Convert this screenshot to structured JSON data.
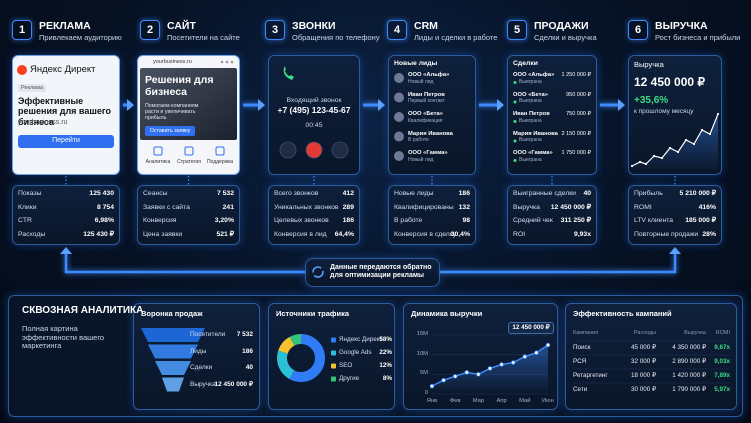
{
  "steps": [
    {
      "num": "1",
      "title": "РЕКЛАМА",
      "subtitle": "Привлекаем аудиторию",
      "card": {
        "brand": "Яндекс Директ",
        "tag": "Реклама",
        "headline": "Эффективные решения для вашего бизнеса",
        "url": "yourbusiness.ru",
        "button": "Перейти"
      },
      "stats": [
        [
          "Показы",
          "125 430"
        ],
        [
          "Клики",
          "8 754"
        ],
        [
          "CTR",
          "6,98%"
        ],
        [
          "Расходы",
          "125 430 ₽"
        ]
      ]
    },
    {
      "num": "2",
      "title": "САЙТ",
      "subtitle": "Посетители на сайте",
      "card": {
        "url": "yourbusiness.ru",
        "headline": "Решения для бизнеса",
        "text": "Помогаем компаниям расти и увеличивать прибыль",
        "button": "Оставить заявку",
        "features": [
          "Аналитика",
          "Стратегия",
          "Поддержка"
        ]
      },
      "stats": [
        [
          "Сеансы",
          "7 532"
        ],
        [
          "Заявки с сайта",
          "241"
        ],
        [
          "Конверсия",
          "3,20%"
        ],
        [
          "Цена заявки",
          "521 ₽"
        ]
      ]
    },
    {
      "num": "3",
      "title": "ЗВОНКИ",
      "subtitle": "Обращения по телефону",
      "card": {
        "caption": "Входящий звонок",
        "phone": "+7 (495) 123-45-67",
        "duration": "00:45"
      },
      "stats": [
        [
          "Всего звонков",
          "412"
        ],
        [
          "Уникальных звонков",
          "289"
        ],
        [
          "Целевых звонков",
          "186"
        ],
        [
          "Конверсия в лид",
          "64,4%"
        ]
      ]
    },
    {
      "num": "4",
      "title": "CRM",
      "subtitle": "Лиды и сделки в работе",
      "card": {
        "title": "Новые лиды",
        "items": [
          [
            "ООО «Альфа»",
            "Новый лид"
          ],
          [
            "Иван Петров",
            "Первый контакт"
          ],
          [
            "ООО «Бета»",
            "Квалификация"
          ],
          [
            "Мария Иванова",
            "В работе"
          ],
          [
            "ООО «Гамма»",
            "Новый лид"
          ]
        ]
      },
      "stats": [
        [
          "Новые лиды",
          "186"
        ],
        [
          "Квалифицированы",
          "132"
        ],
        [
          "В работе",
          "98"
        ],
        [
          "Конверсия в сделку",
          "30,4%"
        ]
      ]
    },
    {
      "num": "5",
      "title": "ПРОДАЖИ",
      "subtitle": "Сделки и выручка",
      "card": {
        "title": "Сделки",
        "items": [
          [
            "ООО «Альфа»",
            "1 250 000 ₽",
            "Выиграна"
          ],
          [
            "ООО «Бета»",
            "950 000 ₽",
            "Выиграна"
          ],
          [
            "Иван Петров",
            "750 000 ₽",
            "Выиграна"
          ],
          [
            "Мария Иванова",
            "2 150 000 ₽",
            "Выиграна"
          ],
          [
            "ООО «Гамма»",
            "1 750 000 ₽",
            "Выиграна"
          ]
        ]
      },
      "stats": [
        [
          "Выигранные сделки",
          "40"
        ],
        [
          "Выручка",
          "12 450 000 ₽"
        ],
        [
          "Средний чек",
          "311 250 ₽"
        ],
        [
          "ROI",
          "9,93х"
        ]
      ]
    },
    {
      "num": "6",
      "title": "ВЫРУЧКА",
      "subtitle": "Рост бизнеса и прибыли",
      "card": {
        "title": "Выручка",
        "amount": "12 450 000 ₽",
        "change": "+35,6%",
        "note": "к прошлому месяцу"
      },
      "stats": [
        [
          "Прибыль",
          "5 210 000 ₽"
        ],
        [
          "ROMI",
          "416%"
        ],
        [
          "LTV клиента",
          "185 000 ₽"
        ],
        [
          "Повторные продажи",
          "28%"
        ]
      ]
    }
  ],
  "feedback": "Данные передаются обратно для оптимизации рекламы",
  "analytics": {
    "title": "СКВОЗНАЯ АНАЛИТИКА",
    "subtitle": "Полная картина эффективности вашего маркетинга",
    "funnel": {
      "title": "Воронка продаж",
      "rows": [
        [
          "Посетители",
          "7 532"
        ],
        [
          "Лиды",
          "186"
        ],
        [
          "Сделки",
          "40"
        ],
        [
          "Выручка",
          "12 450 000 ₽"
        ]
      ]
    },
    "sources": {
      "type": "pie",
      "title": "Источники трафика",
      "categories": [
        "Яндекс Директ",
        "Google Ads",
        "SEO",
        "Другие"
      ],
      "values": [
        58,
        22,
        12,
        8
      ],
      "value_labels": [
        "58%",
        "22%",
        "12%",
        "8%"
      ],
      "colors": [
        "#2f7cf6",
        "#2bc0d8",
        "#f2c230",
        "#35c27a"
      ]
    },
    "revenue": {
      "type": "line",
      "title": "Динамика выручки",
      "x": [
        0,
        0.5,
        1,
        1.5,
        2,
        2.5,
        3,
        3.5,
        4,
        4.5,
        5
      ],
      "values": [
        2000000,
        3500000,
        4500000,
        5500000,
        5000000,
        6500000,
        7500000,
        8000000,
        9500000,
        10500000,
        12450000
      ],
      "xlim": [
        0,
        5
      ],
      "xticks": [
        {
          "value": 0,
          "label": "Янв"
        },
        {
          "value": 1,
          "label": "Фев"
        },
        {
          "value": 2,
          "label": "Мар"
        },
        {
          "value": 3,
          "label": "Апр"
        },
        {
          "value": 4,
          "label": "Май"
        },
        {
          "value": 5,
          "label": "Июн"
        }
      ],
      "ylim": [
        0,
        15000000
      ],
      "yticks": [
        0,
        {
          "value": 5000000,
          "label": "5M"
        },
        {
          "value": 10000000,
          "label": "10M"
        },
        {
          "value": 15000000,
          "label": "15M"
        }
      ],
      "annotation": "12 450 000 ₽",
      "color": "#3d8bff",
      "grid": true
    },
    "campaigns": {
      "title": "Эффективность кампаний",
      "header": [
        "Кампания",
        "Расходы",
        "Выручка",
        "ROMI"
      ],
      "rows": [
        [
          "Поиск",
          "45 000 ₽",
          "4 350 000 ₽",
          "9,67х"
        ],
        [
          "РСЯ",
          "32 000 ₽",
          "2 890 000 ₽",
          "9,03х"
        ],
        [
          "Ретаргетинг",
          "18 000 ₽",
          "1 420 000 ₽",
          "7,89х"
        ],
        [
          "Сети",
          "30 000 ₽",
          "1 790 000 ₽",
          "5,97х"
        ]
      ]
    }
  }
}
